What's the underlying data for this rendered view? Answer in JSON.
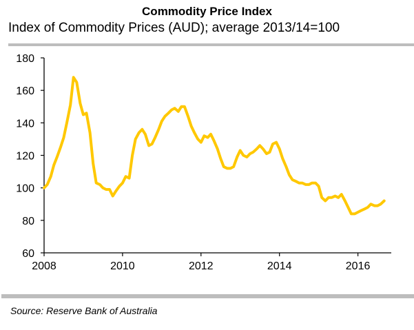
{
  "chart_data": {
    "type": "line",
    "title": "Commodity Price Index",
    "subtitle": "Index of Commodity Prices (AUD); average 2013/14=100",
    "xlabel": "",
    "ylabel": "",
    "xlim": [
      2008,
      2016.85
    ],
    "ylim": [
      60,
      180
    ],
    "grid": false,
    "legend": "none",
    "xticks": [
      2008,
      2010,
      2012,
      2014,
      2016
    ],
    "xtick_labels": [
      "2008",
      "2010",
      "2012",
      "2014",
      "2016"
    ],
    "yticks": [
      60,
      80,
      100,
      120,
      140,
      160,
      180
    ],
    "ytick_labels": [
      "60",
      "80",
      "100",
      "120",
      "140",
      "160",
      "180"
    ],
    "series": [
      {
        "name": "Index of Commodity Prices (AUD)",
        "color": "#ffc800",
        "x": [
          2008.0,
          2008.08,
          2008.17,
          2008.25,
          2008.33,
          2008.42,
          2008.5,
          2008.58,
          2008.67,
          2008.75,
          2008.83,
          2008.92,
          2009.0,
          2009.08,
          2009.17,
          2009.25,
          2009.33,
          2009.42,
          2009.5,
          2009.58,
          2009.67,
          2009.75,
          2009.83,
          2009.92,
          2010.0,
          2010.08,
          2010.17,
          2010.25,
          2010.33,
          2010.42,
          2010.5,
          2010.58,
          2010.67,
          2010.75,
          2010.83,
          2010.92,
          2011.0,
          2011.08,
          2011.17,
          2011.25,
          2011.33,
          2011.42,
          2011.5,
          2011.58,
          2011.67,
          2011.75,
          2011.83,
          2011.92,
          2012.0,
          2012.08,
          2012.17,
          2012.25,
          2012.33,
          2012.42,
          2012.5,
          2012.58,
          2012.67,
          2012.75,
          2012.83,
          2012.92,
          2013.0,
          2013.08,
          2013.17,
          2013.25,
          2013.33,
          2013.42,
          2013.5,
          2013.58,
          2013.67,
          2013.75,
          2013.83,
          2013.92,
          2014.0,
          2014.08,
          2014.17,
          2014.25,
          2014.33,
          2014.42,
          2014.5,
          2014.58,
          2014.67,
          2014.75,
          2014.83,
          2014.92,
          2015.0,
          2015.08,
          2015.17,
          2015.25,
          2015.33,
          2015.42,
          2015.5,
          2015.58,
          2015.67,
          2015.75,
          2015.83,
          2015.92,
          2016.0,
          2016.08,
          2016.17,
          2016.25,
          2016.33,
          2016.42,
          2016.5,
          2016.58,
          2016.67
        ],
        "values": [
          100,
          102,
          107,
          114,
          119,
          125,
          131,
          140,
          151,
          168,
          165,
          152,
          145,
          146,
          134,
          115,
          103,
          102,
          100,
          99,
          99,
          95,
          98,
          101,
          103,
          107,
          106,
          120,
          130,
          134,
          136,
          133,
          126,
          127,
          131,
          136,
          141,
          144,
          146,
          148,
          149,
          147,
          150,
          150,
          144,
          138,
          134,
          130,
          128,
          132,
          131,
          133,
          129,
          124,
          118,
          113,
          112,
          112,
          113,
          119,
          123,
          120,
          119,
          121,
          122,
          124,
          126,
          124,
          121,
          122,
          127,
          128,
          124,
          118,
          113,
          108,
          105,
          104,
          103,
          103,
          102,
          102,
          103,
          103,
          101,
          94,
          92,
          94,
          94,
          95,
          94,
          96,
          92,
          88,
          84,
          84,
          85,
          86,
          87,
          88,
          90,
          89,
          89,
          90,
          92
        ]
      }
    ]
  },
  "footer": {
    "source": "Source: Reserve Bank of Australia"
  }
}
